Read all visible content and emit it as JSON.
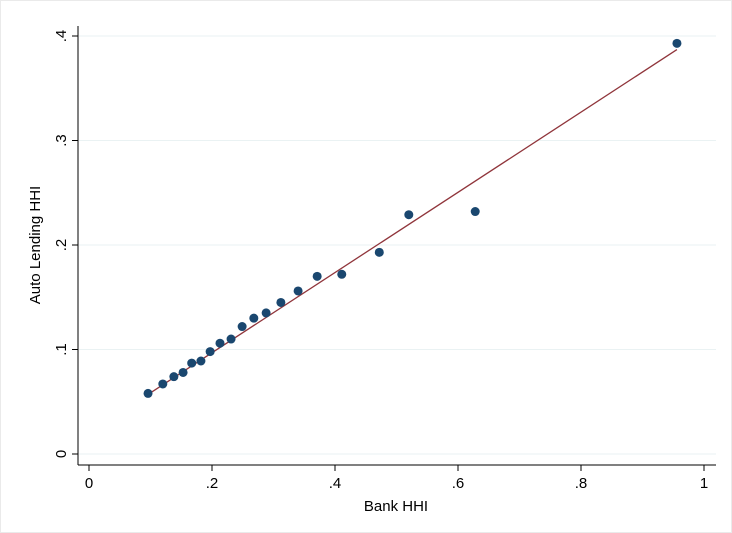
{
  "chart_data": {
    "type": "scatter",
    "x_label": "Bank HHI",
    "y_label": "Auto Lending HHI",
    "series": [
      {
        "color": "#1a476f",
        "x": [
          0.096,
          0.12,
          0.138,
          0.153,
          0.167,
          0.182,
          0.197,
          0.213,
          0.231,
          0.249,
          0.268,
          0.288,
          0.312,
          0.34,
          0.371,
          0.411,
          0.472,
          0.52,
          0.628,
          0.956
        ],
        "values": [
          0.058,
          0.067,
          0.074,
          0.078,
          0.087,
          0.089,
          0.098,
          0.106,
          0.11,
          0.122,
          0.13,
          0.135,
          0.145,
          0.156,
          0.17,
          0.172,
          0.193,
          0.229,
          0.232,
          0.393
        ]
      }
    ],
    "fit_line": {
      "color": "#90353b",
      "x": [
        0.096,
        0.956
      ],
      "values": [
        0.057,
        0.387
      ]
    },
    "xlim": [
      0,
      1
    ],
    "ylim": [
      0,
      0.4
    ],
    "xticks": [
      0,
      {
        "value": 0.2,
        "label": ".2"
      },
      {
        "value": 0.4,
        "label": ".4"
      },
      {
        "value": 0.6,
        "label": ".6"
      },
      {
        "value": 0.8,
        "label": ".8"
      },
      1
    ],
    "yticks": [
      0,
      {
        "value": 0.1,
        "label": ".1"
      },
      {
        "value": 0.2,
        "label": ".2"
      },
      {
        "value": 0.3,
        "label": ".3"
      },
      {
        "value": 0.4,
        "label": ".4"
      }
    ],
    "grid": true
  }
}
